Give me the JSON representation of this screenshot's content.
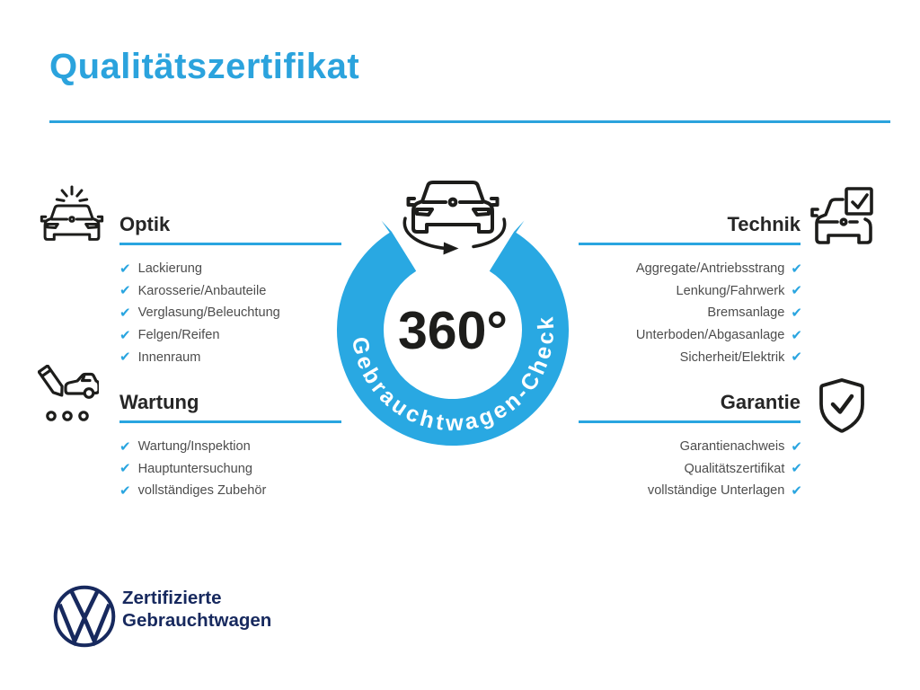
{
  "title": "Qualitätszertifikat",
  "colors": {
    "accent_blue": "#29A5E0",
    "title_blue": "#2BA3DD",
    "heading_text": "#262626",
    "item_text": "#4D4D4D",
    "icon_stroke": "#1D1D1B",
    "ring_label_text": "#FFFFFF",
    "vw_navy": "#17295E",
    "background": "#FFFFFF"
  },
  "check_glyph": "✔",
  "center_badge": {
    "value": "360°",
    "ring_label": "Gebrauchtwagen-Check",
    "icon": "rotating-car-icon"
  },
  "sections": [
    {
      "id": "optik",
      "label": "Optik",
      "icon": "car-shine-icon",
      "items": [
        "Lackierung",
        "Karosserie/Anbauteile",
        "Verglasung/Beleuchtung",
        "Felgen/Reifen",
        "Innenraum"
      ]
    },
    {
      "id": "wartung",
      "label": "Wartung",
      "icon": "pencil-car-checklist-icon",
      "items": [
        "Wartung/Inspektion",
        "Hauptuntersuchung",
        "vollständiges Zubehör"
      ]
    },
    {
      "id": "technik",
      "label": "Technik",
      "icon": "car-checkbox-icon",
      "items": [
        "Aggregate/Antriebsstrang",
        "Lenkung/Fahrwerk",
        "Bremsanlage",
        "Unterboden/Abgasanlage",
        "Sicherheit/Elektrik"
      ]
    },
    {
      "id": "garantie",
      "label": "Garantie",
      "icon": "shield-check-icon",
      "items": [
        "Garantienachweis",
        "Qualitätszertifikat",
        "vollständige Unterlagen"
      ]
    }
  ],
  "footer": {
    "logo": "vw-logo",
    "line1": "Zertifizierte",
    "line2": "Gebrauchtwagen"
  }
}
